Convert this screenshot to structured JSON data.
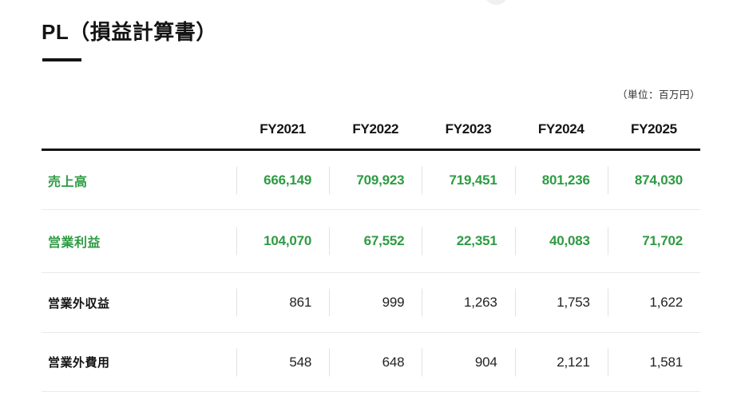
{
  "page": {
    "title": "PL（損益計算書）",
    "unit_note": "（単位：百万円）"
  },
  "colors": {
    "accent_green": "#2e9b43",
    "text_black": "#141414",
    "separator_gray": "#e9e9e9"
  },
  "table": {
    "column_headers": [
      "FY2021",
      "FY2022",
      "FY2023",
      "FY2024",
      "FY2025"
    ],
    "rows": [
      {
        "label": "売上高",
        "emphasis": true,
        "values": [
          "666,149",
          "709,923",
          "719,451",
          "801,236",
          "874,030"
        ]
      },
      {
        "label": "営業利益",
        "emphasis": true,
        "values": [
          "104,070",
          "67,552",
          "22,351",
          "40,083",
          "71,702"
        ]
      },
      {
        "label": "営業外収益",
        "emphasis": false,
        "values": [
          "861",
          "999",
          "1,263",
          "1,753",
          "1,622"
        ]
      },
      {
        "label": "営業外費用",
        "emphasis": false,
        "values": [
          "548",
          "648",
          "904",
          "2,121",
          "1,581"
        ]
      }
    ]
  }
}
